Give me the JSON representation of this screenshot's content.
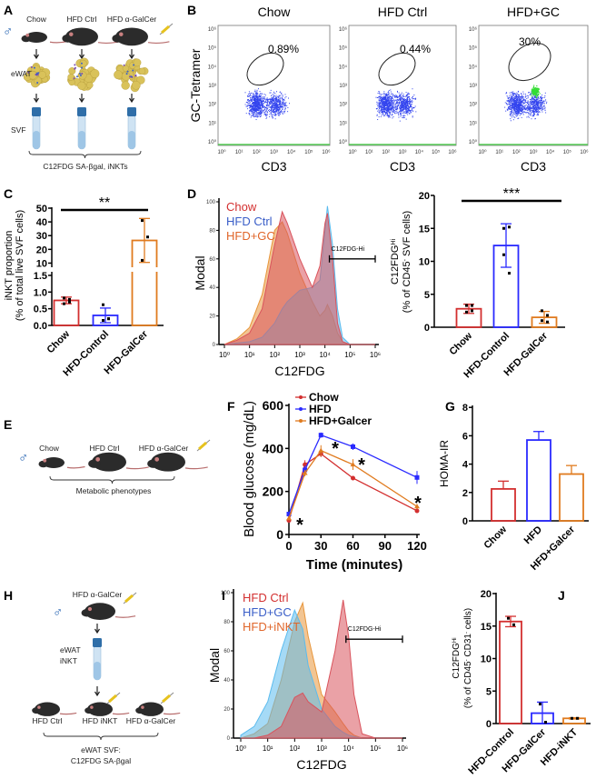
{
  "panel_labels": {
    "A": "A",
    "B": "B",
    "C": "C",
    "D": "D",
    "E": "E",
    "F": "F",
    "G": "G",
    "H": "H",
    "I": "I",
    "J": "J"
  },
  "colors": {
    "chow": "#d32f2f",
    "hfd": "#2a2aff",
    "galcer": "#e07b1f",
    "flow_dots": "#3344ee",
    "flow_gate_hi": "#33dd33"
  },
  "panel_a": {
    "sex_symbol": "♂",
    "groups": [
      "Chow",
      "HFD Ctrl",
      "HFD α-GalCer"
    ],
    "rows": [
      "eWAT",
      "SVF"
    ],
    "footer": "C12FDG SA-βgal, iNKTs",
    "icons": [
      "mouse-icon",
      "syringe-icon",
      "adipose-tissue-icon",
      "tube-icon",
      "arrow-down-icon",
      "brace-icon"
    ]
  },
  "panel_b": {
    "xlabel": "CD3",
    "ylabel": "GC-Tetramer",
    "tick_labels": [
      "10⁰",
      "10¹",
      "10²",
      "10³",
      "10⁴",
      "10⁵",
      "10⁶"
    ],
    "plots": [
      {
        "title": "Chow",
        "gate": "0.89%"
      },
      {
        "title": "HFD Ctrl",
        "gate": "0.44%"
      },
      {
        "title": "HFD+GC",
        "gate": "30%"
      }
    ]
  },
  "panel_e": {
    "sex_symbol": "♂",
    "groups": [
      "Chow",
      "HFD Ctrl",
      "HFD α-GalCer"
    ],
    "footer": "Metabolic phenotypes"
  },
  "panel_h": {
    "sex_symbol": "♂",
    "donor": "HFD α-GalCer",
    "tube_label": [
      "eWAT",
      "iNKT"
    ],
    "groups": [
      "HFD Ctrl",
      "HFD  iNKT",
      "HFD α-GalCer"
    ],
    "footer": [
      "eWAT SVF:",
      "C12FDG SA-βgal"
    ]
  },
  "chart_data": [
    {
      "id": "C",
      "type": "bar",
      "ylabel": [
        "iNKT proportion",
        "(% of total live SVF cells)"
      ],
      "categories": [
        "Chow",
        "HFD-Control",
        "HFD-GalCer"
      ],
      "values": [
        0.75,
        0.3,
        26.5
      ],
      "errors": [
        0.1,
        0.22,
        16
      ],
      "points": [
        [
          0.82,
          0.78,
          0.65,
          0.7
        ],
        [
          0.62,
          0.2,
          0.15,
          0.2
        ],
        [
          41,
          29,
          12,
          6
        ]
      ],
      "y_broken_axis": {
        "lower": [
          0,
          1.5
        ],
        "upper": [
          5,
          50
        ]
      },
      "y_ticks_lower": [
        "0.0",
        "0.5",
        "1.0",
        "1.5"
      ],
      "y_ticks_upper": [
        "10",
        "20",
        "30",
        "40",
        "50"
      ],
      "significance": "**"
    },
    {
      "id": "D-hist",
      "type": "area",
      "xlabel": "C12FDG",
      "ylabel": "Modal",
      "x_scale": "log",
      "xlim": [
        1,
        1000000
      ],
      "ylim": [
        0,
        100
      ],
      "y_ticks": [
        "0",
        "20",
        "40",
        "60",
        "80",
        "100"
      ],
      "x_log10": [
        0,
        0.5,
        1,
        1.5,
        2,
        2.3,
        2.5,
        3,
        3.5,
        3.8,
        4,
        4.1,
        4.3,
        4.5,
        4.7,
        5,
        6
      ],
      "series": [
        {
          "name": "Chow",
          "color": "#d9535c",
          "values": [
            0,
            3,
            8,
            25,
            70,
            93,
            85,
            60,
            40,
            55,
            85,
            92,
            60,
            15,
            2,
            0,
            0
          ]
        },
        {
          "name": "HFD Ctrl",
          "color": "#5bbbee",
          "values": [
            0,
            1,
            2,
            5,
            15,
            25,
            30,
            38,
            40,
            45,
            80,
            97,
            70,
            25,
            5,
            0,
            0
          ]
        },
        {
          "name": "HFD+GC",
          "color": "#e8963b",
          "values": [
            0,
            4,
            12,
            35,
            80,
            86,
            78,
            50,
            30,
            20,
            24,
            28,
            20,
            8,
            2,
            0,
            0
          ]
        }
      ],
      "legend_colors": [
        "#d32f2f",
        "#3a5ec8",
        "#e0662a"
      ],
      "gate": {
        "label": "C12FDG-Hi",
        "from": 15000,
        "to": 1000000,
        "at": 60
      }
    },
    {
      "id": "D-bar",
      "type": "bar",
      "ylabel": [
        "C12FDG",
        "Hi",
        "(% of CD45",
        "-",
        " SVF cells)"
      ],
      "categories": [
        "Chow",
        "HFD-Control",
        "HFD-GalCer"
      ],
      "values": [
        2.8,
        12.4,
        1.5
      ],
      "errors": [
        0.7,
        3.3,
        0.9
      ],
      "points": [
        [
          3.3,
          3.3,
          2.3,
          2.5
        ],
        [
          15,
          15.2,
          11,
          8.2
        ],
        [
          2.5,
          1.8,
          1.0,
          0.8
        ]
      ],
      "ylim": [
        0,
        20
      ],
      "y_ticks": [
        "0",
        "5",
        "10",
        "15",
        "20"
      ],
      "significance": "***"
    },
    {
      "id": "F",
      "type": "line",
      "xlabel": "Time (minutes)",
      "ylabel": "Blood glucose (mg/dL)",
      "x": [
        0,
        15,
        30,
        60,
        120
      ],
      "xlim": [
        0,
        120
      ],
      "ylim": [
        0,
        600
      ],
      "x_ticks": [
        "0",
        "30",
        "60",
        "90",
        "120"
      ],
      "y_ticks": [
        "0",
        "200",
        "400",
        "600"
      ],
      "series": [
        {
          "name": "Chow",
          "color": "#d32f2f",
          "marker": "circle",
          "values": [
            65,
            325,
            375,
            262,
            110
          ],
          "errors": [
            8,
            20,
            15,
            10,
            10
          ]
        },
        {
          "name": "HFD",
          "color": "#2a2aff",
          "marker": "square",
          "values": [
            95,
            300,
            462,
            408,
            265
          ],
          "errors": [
            8,
            20,
            12,
            15,
            30
          ]
        },
        {
          "name": "HFD+Galcer",
          "color": "#e07b1f",
          "marker": "triangle",
          "values": [
            75,
            285,
            390,
            325,
            130
          ],
          "errors": [
            8,
            15,
            25,
            25,
            12
          ]
        }
      ],
      "annotations": [
        {
          "x": 0,
          "text": "*"
        },
        {
          "x": 30,
          "text": "*"
        },
        {
          "x": 60,
          "text": "*"
        },
        {
          "x": 120,
          "text": "*"
        }
      ],
      "legend": "top-left"
    },
    {
      "id": "G",
      "type": "bar",
      "ylabel": "HOMA-IR",
      "categories": [
        "Chow",
        "HFD",
        "HFD+Galcer"
      ],
      "values": [
        2.25,
        5.7,
        3.3
      ],
      "errors": [
        0.55,
        0.6,
        0.6
      ],
      "ylim": [
        0,
        8
      ],
      "y_ticks": [
        "0",
        "2",
        "4",
        "6",
        "8"
      ]
    },
    {
      "id": "I",
      "type": "area",
      "xlabel": "C12FDG",
      "ylabel": "Modal",
      "x_scale": "log",
      "xlim": [
        1,
        1000000
      ],
      "ylim": [
        0,
        100
      ],
      "y_ticks": [
        "0",
        "20",
        "40",
        "60",
        "80",
        "100"
      ],
      "x_log10": [
        0,
        0.5,
        1,
        1.5,
        2,
        2.3,
        2.5,
        3,
        3.5,
        3.8,
        4,
        4.2,
        4.5,
        5,
        6
      ],
      "series": [
        {
          "name": "HFD Ctrl",
          "color": "#d9535c",
          "values": [
            0,
            0,
            2,
            8,
            28,
            31,
            25,
            18,
            60,
            95,
            70,
            30,
            3,
            0,
            0
          ]
        },
        {
          "name": "HFD+GC",
          "color": "#5bbbee",
          "values": [
            2,
            8,
            25,
            60,
            88,
            75,
            50,
            20,
            8,
            4,
            2,
            1,
            0,
            0,
            0
          ]
        },
        {
          "name": "HFD+iNKT",
          "color": "#e8963b",
          "values": [
            0,
            3,
            10,
            40,
            80,
            93,
            70,
            30,
            18,
            10,
            5,
            2,
            0,
            0,
            0
          ]
        }
      ],
      "legend_colors": [
        "#d32f2f",
        "#3a5ec8",
        "#e0662a"
      ],
      "gate": {
        "label": "C12FDG-Hi",
        "from": 8000,
        "to": 1000000,
        "at": 68
      }
    },
    {
      "id": "J",
      "type": "bar",
      "ylabel": [
        "C12FDG",
        "Hi",
        "(% of CD45",
        "-",
        " CD31",
        "-",
        " cells)"
      ],
      "categories": [
        "HFD-Control",
        "HFD-GalCer",
        "HFD-iNKT"
      ],
      "values": [
        15.7,
        1.6,
        0.8
      ],
      "errors": [
        0.8,
        1.7,
        0.1
      ],
      "points": [
        [
          16.2,
          15.2
        ],
        [
          3.0,
          0.2
        ],
        [
          0.8,
          0.8
        ]
      ],
      "ylim": [
        0,
        20
      ],
      "y_ticks": [
        "0",
        "5",
        "10",
        "15",
        "20"
      ]
    }
  ]
}
